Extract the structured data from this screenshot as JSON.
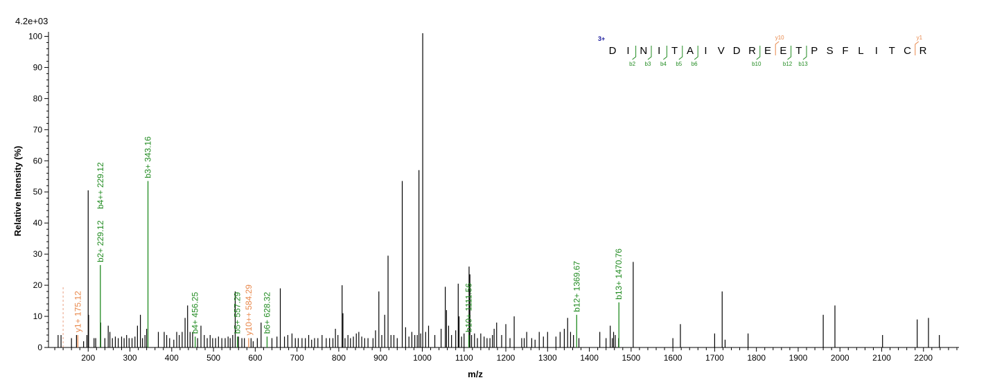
{
  "chart_data": {
    "type": "bar",
    "scale_label": "4.2e+03",
    "xlabel": "m/z",
    "ylabel": "Relative   Intensity (%)",
    "xlim": [
      105,
      2285
    ],
    "ylim": [
      0,
      101
    ],
    "x_ticks": [
      200,
      300,
      400,
      500,
      600,
      700,
      800,
      900,
      1000,
      1100,
      1200,
      1300,
      1400,
      1500,
      1600,
      1700,
      1800,
      1900,
      2000,
      2100,
      2200
    ],
    "y_ticks": [
      0,
      10,
      20,
      30,
      40,
      50,
      60,
      70,
      80,
      90,
      100
    ],
    "colors": {
      "b_ion": "#1f8a1f",
      "y_ion": "#e8874a",
      "peak": "#000000",
      "charge": "#1a1a9c"
    },
    "peaks": [
      [
        128,
        4
      ],
      [
        135,
        4
      ],
      [
        160,
        3
      ],
      [
        172,
        4
      ],
      [
        189,
        2
      ],
      [
        197,
        4
      ],
      [
        200,
        50.5
      ],
      [
        201,
        10.5
      ],
      [
        214,
        3
      ],
      [
        218,
        3
      ],
      [
        230,
        8
      ],
      [
        240,
        3
      ],
      [
        248,
        7
      ],
      [
        252,
        5
      ],
      [
        258,
        3
      ],
      [
        265,
        3.5
      ],
      [
        272,
        3
      ],
      [
        280,
        3.5
      ],
      [
        286,
        3
      ],
      [
        292,
        4
      ],
      [
        298,
        3
      ],
      [
        305,
        3
      ],
      [
        312,
        3.5
      ],
      [
        318,
        7
      ],
      [
        325,
        10.5
      ],
      [
        330,
        3
      ],
      [
        336,
        4
      ],
      [
        340,
        6
      ],
      [
        368,
        5
      ],
      [
        382,
        5
      ],
      [
        388,
        4
      ],
      [
        395,
        3
      ],
      [
        405,
        2.5
      ],
      [
        412,
        5
      ],
      [
        418,
        4
      ],
      [
        425,
        5
      ],
      [
        432,
        9.5
      ],
      [
        438,
        13.5
      ],
      [
        444,
        5
      ],
      [
        450,
        5
      ],
      [
        462,
        3
      ],
      [
        470,
        7
      ],
      [
        478,
        4
      ],
      [
        485,
        3
      ],
      [
        492,
        4
      ],
      [
        498,
        3
      ],
      [
        505,
        3
      ],
      [
        512,
        3.5
      ],
      [
        520,
        3
      ],
      [
        528,
        3
      ],
      [
        535,
        3.5
      ],
      [
        540,
        3
      ],
      [
        546,
        4
      ],
      [
        552,
        18
      ],
      [
        560,
        3.5
      ],
      [
        568,
        3
      ],
      [
        574,
        3
      ],
      [
        590,
        3
      ],
      [
        595,
        2
      ],
      [
        605,
        3
      ],
      [
        614,
        8
      ],
      [
        640,
        3
      ],
      [
        652,
        3.5
      ],
      [
        660,
        19
      ],
      [
        670,
        3.5
      ],
      [
        678,
        4
      ],
      [
        688,
        4.5
      ],
      [
        696,
        3
      ],
      [
        703,
        3
      ],
      [
        712,
        3
      ],
      [
        720,
        3
      ],
      [
        728,
        4
      ],
      [
        735,
        2.5
      ],
      [
        742,
        3
      ],
      [
        750,
        3
      ],
      [
        760,
        4
      ],
      [
        770,
        3
      ],
      [
        778,
        3
      ],
      [
        786,
        3
      ],
      [
        792,
        6
      ],
      [
        798,
        4
      ],
      [
        808,
        20
      ],
      [
        810,
        11
      ],
      [
        815,
        3
      ],
      [
        822,
        4
      ],
      [
        828,
        3
      ],
      [
        835,
        3.5
      ],
      [
        842,
        4.5
      ],
      [
        848,
        5
      ],
      [
        855,
        3.5
      ],
      [
        862,
        3
      ],
      [
        870,
        3
      ],
      [
        882,
        3
      ],
      [
        888,
        5.5
      ],
      [
        896,
        18
      ],
      [
        903,
        4
      ],
      [
        910,
        10.5
      ],
      [
        918,
        29.5
      ],
      [
        925,
        4
      ],
      [
        932,
        4
      ],
      [
        940,
        3
      ],
      [
        952,
        53.5
      ],
      [
        960,
        6.5
      ],
      [
        968,
        3.5
      ],
      [
        975,
        5
      ],
      [
        982,
        4
      ],
      [
        988,
        4
      ],
      [
        992,
        57
      ],
      [
        996,
        4.5
      ],
      [
        1001,
        101
      ],
      [
        1008,
        5
      ],
      [
        1015,
        7
      ],
      [
        1030,
        4
      ],
      [
        1045,
        6
      ],
      [
        1055,
        19.5
      ],
      [
        1058,
        12
      ],
      [
        1063,
        7
      ],
      [
        1070,
        4
      ],
      [
        1080,
        5.5
      ],
      [
        1086,
        20.5
      ],
      [
        1088,
        10
      ],
      [
        1094,
        3.5
      ],
      [
        1100,
        4.5
      ],
      [
        1112,
        26
      ],
      [
        1114,
        23.5
      ],
      [
        1118,
        4
      ],
      [
        1125,
        4.5
      ],
      [
        1132,
        3
      ],
      [
        1140,
        4.5
      ],
      [
        1148,
        3.5
      ],
      [
        1155,
        3
      ],
      [
        1162,
        3
      ],
      [
        1168,
        4
      ],
      [
        1172,
        6
      ],
      [
        1178,
        8
      ],
      [
        1190,
        4
      ],
      [
        1200,
        7.5
      ],
      [
        1210,
        3
      ],
      [
        1220,
        10
      ],
      [
        1238,
        3
      ],
      [
        1244,
        3
      ],
      [
        1250,
        5
      ],
      [
        1262,
        3
      ],
      [
        1270,
        2.5
      ],
      [
        1280,
        5
      ],
      [
        1290,
        3.5
      ],
      [
        1300,
        5
      ],
      [
        1320,
        3.5
      ],
      [
        1330,
        5
      ],
      [
        1340,
        6
      ],
      [
        1348,
        9.5
      ],
      [
        1355,
        5
      ],
      [
        1362,
        4
      ],
      [
        1375,
        3
      ],
      [
        1425,
        5
      ],
      [
        1440,
        3
      ],
      [
        1450,
        7
      ],
      [
        1455,
        3
      ],
      [
        1458,
        5
      ],
      [
        1462,
        4
      ],
      [
        1470,
        3
      ],
      [
        1505,
        27.5
      ],
      [
        1600,
        3
      ],
      [
        1618,
        7.5
      ],
      [
        1700,
        4.5
      ],
      [
        1718,
        18
      ],
      [
        1725,
        2.5
      ],
      [
        1780,
        4.5
      ],
      [
        1960,
        10.5
      ],
      [
        1988,
        13.5
      ],
      [
        2102,
        4
      ],
      [
        2185,
        9
      ],
      [
        2212,
        9.5
      ],
      [
        2238,
        4
      ]
    ],
    "annotated_peaks": [
      {
        "mz": 175.12,
        "intensity": 4,
        "series": "y",
        "label": "y1+ 175.12"
      },
      {
        "mz": 229.12,
        "intensity": 26.5,
        "series": "b",
        "label": "b2+ 229.12"
      },
      {
        "mz": 229.12,
        "intensity": 26.5,
        "series": "b",
        "label": "b4++ 229.12",
        "label_only": true
      },
      {
        "mz": 343.16,
        "intensity": 53.5,
        "series": "b",
        "label": "b3+ 343.16"
      },
      {
        "mz": 456.25,
        "intensity": 3.5,
        "series": "b",
        "label": "b4+ 456.25"
      },
      {
        "mz": 557.29,
        "intensity": 3.5,
        "series": "b",
        "label": "b5+ 557.29"
      },
      {
        "mz": 584.29,
        "intensity": 3,
        "series": "y",
        "label": "y10++ 584.29"
      },
      {
        "mz": 628.32,
        "intensity": 3.5,
        "series": "b",
        "label": "b6+ 628.32"
      },
      {
        "mz": 1111.56,
        "intensity": 4,
        "series": "b",
        "label": "b10+ 1111.56"
      },
      {
        "mz": 1369.67,
        "intensity": 10.5,
        "series": "b",
        "label": "b12+ 1369.67"
      },
      {
        "mz": 1470.76,
        "intensity": 14.5,
        "series": "b",
        "label": "b13+ 1470.76"
      }
    ],
    "precursor_marker": {
      "mz": 140,
      "intensity": 19.5
    }
  },
  "peptide": {
    "charge": "3+",
    "sequence": [
      "D",
      "I",
      "N",
      "I",
      "T",
      "A",
      "I",
      "V",
      "D",
      "R",
      "E",
      "E",
      "T",
      "P",
      "S",
      "F",
      "L",
      "I",
      "T",
      "C",
      "R"
    ],
    "b_fragments": [
      {
        "after": 2,
        "label": "b2"
      },
      {
        "after": 3,
        "label": "b3"
      },
      {
        "after": 4,
        "label": "b4"
      },
      {
        "after": 5,
        "label": "b5"
      },
      {
        "after": 6,
        "label": "b6"
      },
      {
        "after": 10,
        "label": "b10"
      },
      {
        "after": 12,
        "label": "b12"
      },
      {
        "after": 13,
        "label": "b13"
      }
    ],
    "y_fragments": [
      {
        "after": 11,
        "label": "y10"
      },
      {
        "after": 20,
        "label": "y1"
      }
    ]
  }
}
